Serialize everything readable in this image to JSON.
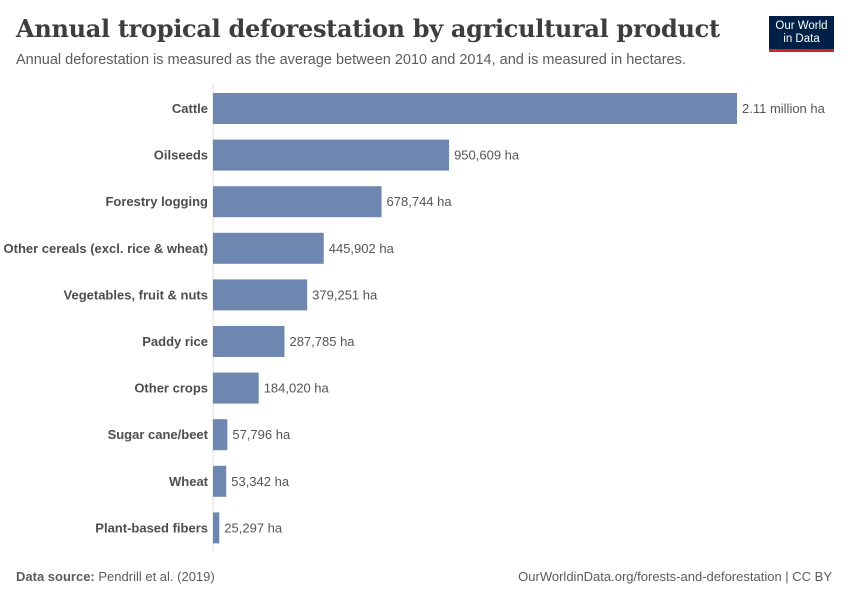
{
  "header": {
    "title": "Annual tropical deforestation by agricultural product",
    "subtitle": "Annual deforestation is measured as the average between 2010 and 2014, and is measured in hectares."
  },
  "logo": {
    "line1": "Our World",
    "line2": "in Data"
  },
  "footer": {
    "source_label": "Data source:",
    "source_value": "Pendrill et al. (2019)",
    "credit": "OurWorldinData.org/forests-and-deforestation | CC BY"
  },
  "colors": {
    "bar": "#6d87b0",
    "label": "#4d4d4d",
    "value": "#555555",
    "brand": "#002147",
    "brand_accent": "#ce261e"
  },
  "chart_data": {
    "type": "bar",
    "orientation": "horizontal",
    "categories": [
      "Cattle",
      "Oilseeds",
      "Forestry logging",
      "Other cereals (excl. rice & wheat)",
      "Vegetables, fruit & nuts",
      "Paddy rice",
      "Other crops",
      "Sugar cane/beet",
      "Wheat",
      "Plant-based fibers"
    ],
    "values": [
      2110000,
      950609,
      678744,
      445902,
      379251,
      287785,
      184020,
      57796,
      53342,
      25297
    ],
    "value_labels": [
      "2.11 million ha",
      "950,609 ha",
      "678,744 ha",
      "445,902 ha",
      "379,251 ha",
      "287,785 ha",
      "184,020 ha",
      "57,796 ha",
      "53,342 ha",
      "25,297 ha"
    ],
    "unit": "ha",
    "xlim": [
      0,
      2110000
    ]
  }
}
